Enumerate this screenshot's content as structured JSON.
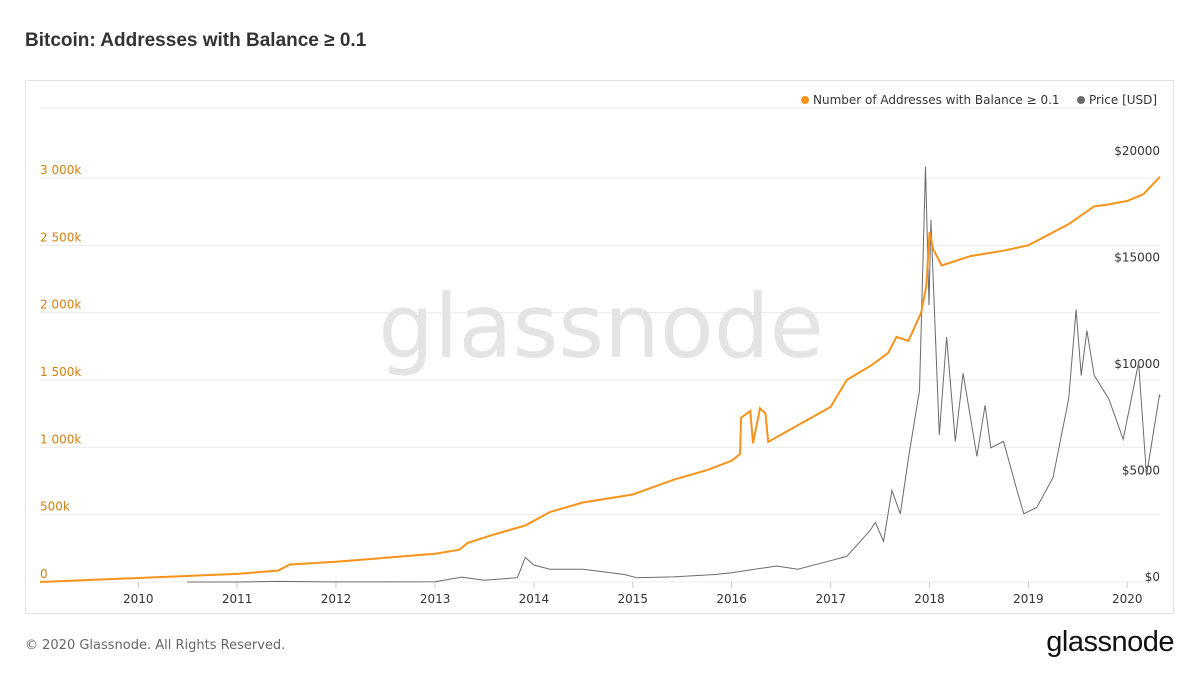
{
  "header": {
    "title": "Bitcoin: Addresses with Balance ≥ 0.1"
  },
  "watermark": "glassnode",
  "footer": {
    "copyright": "© 2020 Glassnode. All Rights Reserved.",
    "logo": "glassnode"
  },
  "colors": {
    "addresses": "#f7931a",
    "price": "#6b6b6b",
    "left_axis_text": "#d4800f",
    "grid": "#ececec",
    "watermark": "#e4e4e4"
  },
  "chart_data": {
    "type": "line",
    "title": "Bitcoin: Addresses with Balance ≥ 0.1",
    "legend": {
      "placement": "top-right",
      "entries": [
        "Number of Addresses with Balance ≥ 0.1",
        "Price [USD]"
      ]
    },
    "grid": true,
    "x": {
      "type": "date",
      "range": [
        "2009-01-03",
        "2020-05-01"
      ],
      "tick_labels": [
        "2010",
        "2011",
        "2012",
        "2013",
        "2014",
        "2015",
        "2016",
        "2017",
        "2018",
        "2019",
        "2020"
      ]
    },
    "y_left": {
      "range": [
        0,
        3000000
      ],
      "ticks": [
        0,
        500000,
        1000000,
        1500000,
        2000000,
        2500000,
        3000000
      ],
      "tick_labels": [
        "0",
        "500k",
        "1 000k",
        "1 500k",
        "2 000k",
        "2 500k",
        "3 000k"
      ]
    },
    "y_right": {
      "range": [
        0,
        20000
      ],
      "ticks": [
        0,
        5000,
        10000,
        15000,
        20000
      ],
      "tick_labels": [
        "$0",
        "$5000",
        "$10000",
        "$15000",
        "$20000"
      ]
    },
    "series": [
      {
        "name": "Number of Addresses with Balance ≥ 0.1",
        "axis": "left",
        "points": [
          [
            "2009-01-03",
            0
          ],
          [
            "2010-01-01",
            30000
          ],
          [
            "2011-01-01",
            60000
          ],
          [
            "2011-06-01",
            85000
          ],
          [
            "2011-07-15",
            130000
          ],
          [
            "2012-01-01",
            150000
          ],
          [
            "2012-07-01",
            180000
          ],
          [
            "2013-01-01",
            210000
          ],
          [
            "2013-04-01",
            240000
          ],
          [
            "2013-05-01",
            290000
          ],
          [
            "2013-08-01",
            350000
          ],
          [
            "2013-12-01",
            420000
          ],
          [
            "2014-03-01",
            520000
          ],
          [
            "2014-07-01",
            590000
          ],
          [
            "2015-01-01",
            650000
          ],
          [
            "2015-06-01",
            760000
          ],
          [
            "2015-10-01",
            830000
          ],
          [
            "2016-01-01",
            900000
          ],
          [
            "2016-02-01",
            950000
          ],
          [
            "2016-02-05",
            1220000
          ],
          [
            "2016-03-10",
            1270000
          ],
          [
            "2016-03-20",
            1030000
          ],
          [
            "2016-04-15",
            1290000
          ],
          [
            "2016-05-05",
            1250000
          ],
          [
            "2016-05-15",
            1040000
          ],
          [
            "2017-01-01",
            1300000
          ],
          [
            "2017-03-01",
            1500000
          ],
          [
            "2017-06-01",
            1610000
          ],
          [
            "2017-08-01",
            1700000
          ],
          [
            "2017-09-01",
            1820000
          ],
          [
            "2017-10-15",
            1790000
          ],
          [
            "2017-12-01",
            2000000
          ],
          [
            "2017-12-20",
            2200000
          ],
          [
            "2018-01-01",
            2600000
          ],
          [
            "2018-01-15",
            2470000
          ],
          [
            "2018-02-15",
            2350000
          ],
          [
            "2018-06-01",
            2420000
          ],
          [
            "2018-10-01",
            2460000
          ],
          [
            "2019-01-01",
            2500000
          ],
          [
            "2019-06-01",
            2660000
          ],
          [
            "2019-09-01",
            2790000
          ],
          [
            "2019-10-15",
            2800000
          ],
          [
            "2020-01-01",
            2830000
          ],
          [
            "2020-03-01",
            2880000
          ],
          [
            "2020-05-01",
            3010000
          ]
        ]
      },
      {
        "name": "Price [USD]",
        "axis": "right",
        "points": [
          [
            "2010-07-01",
            0.1
          ],
          [
            "2011-01-01",
            0.3
          ],
          [
            "2011-06-08",
            30
          ],
          [
            "2011-12-01",
            3
          ],
          [
            "2012-06-01",
            6
          ],
          [
            "2013-01-01",
            13
          ],
          [
            "2013-04-10",
            230
          ],
          [
            "2013-07-01",
            80
          ],
          [
            "2013-11-01",
            200
          ],
          [
            "2013-11-30",
            1150
          ],
          [
            "2014-01-01",
            800
          ],
          [
            "2014-03-01",
            600
          ],
          [
            "2014-07-01",
            600
          ],
          [
            "2014-12-01",
            350
          ],
          [
            "2015-01-15",
            200
          ],
          [
            "2015-06-01",
            240
          ],
          [
            "2015-11-01",
            350
          ],
          [
            "2016-01-01",
            430
          ],
          [
            "2016-06-15",
            750
          ],
          [
            "2016-09-01",
            600
          ],
          [
            "2017-01-01",
            1000
          ],
          [
            "2017-03-01",
            1200
          ],
          [
            "2017-05-25",
            2400
          ],
          [
            "2017-06-15",
            2800
          ],
          [
            "2017-07-15",
            1900
          ],
          [
            "2017-08-15",
            4300
          ],
          [
            "2017-09-15",
            3200
          ],
          [
            "2017-10-15",
            5800
          ],
          [
            "2017-11-25",
            9000
          ],
          [
            "2017-12-17",
            19500
          ],
          [
            "2017-12-30",
            13000
          ],
          [
            "2018-01-06",
            17000
          ],
          [
            "2018-02-06",
            6900
          ],
          [
            "2018-03-05",
            11500
          ],
          [
            "2018-04-06",
            6600
          ],
          [
            "2018-05-05",
            9800
          ],
          [
            "2018-06-25",
            5900
          ],
          [
            "2018-07-25",
            8300
          ],
          [
            "2018-08-15",
            6300
          ],
          [
            "2018-10-01",
            6600
          ],
          [
            "2018-11-20",
            4300
          ],
          [
            "2018-12-15",
            3200
          ],
          [
            "2019-02-01",
            3500
          ],
          [
            "2019-04-02",
            4900
          ],
          [
            "2019-05-30",
            8600
          ],
          [
            "2019-06-26",
            12800
          ],
          [
            "2019-07-15",
            9700
          ],
          [
            "2019-08-05",
            11800
          ],
          [
            "2019-09-01",
            9700
          ],
          [
            "2019-10-25",
            8600
          ],
          [
            "2019-12-17",
            6700
          ],
          [
            "2020-02-12",
            10300
          ],
          [
            "2020-03-12",
            5000
          ],
          [
            "2020-04-29",
            8800
          ],
          [
            "2020-05-01",
            8700
          ]
        ]
      }
    ]
  }
}
